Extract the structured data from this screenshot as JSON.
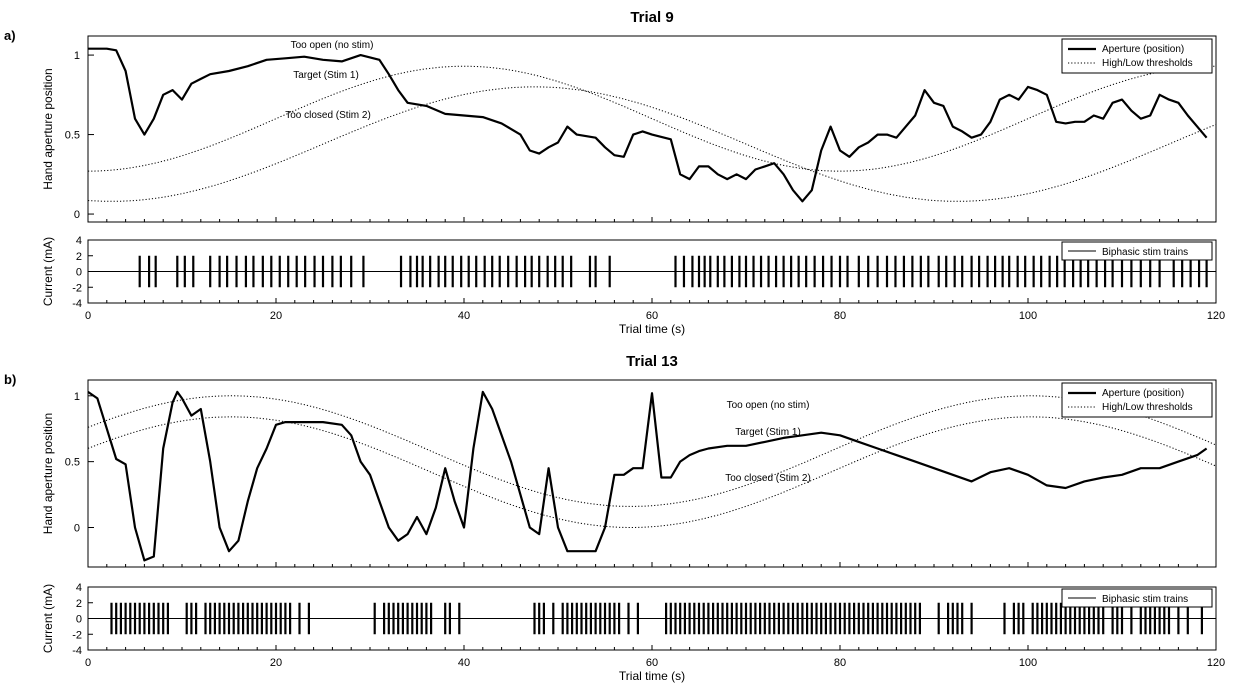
{
  "figure": {
    "panels": [
      {
        "letter": "a)",
        "title": "Trial 9",
        "main_ylabel": "Hand aperture position",
        "stim_ylabel": "Current (mA)",
        "xlabel": "Trial time (s)",
        "annotations": {
          "too_open": "Too open (no stim)",
          "target": "Target (Stim 1)",
          "too_closed": "Too closed (Stim 2)"
        },
        "legend": {
          "aperture": "Aperture (position)",
          "thresholds": "High/Low thresholds",
          "stim": "Biphasic stim trains"
        }
      },
      {
        "letter": "b)",
        "title": "Trial 13",
        "main_ylabel": "Hand aperture position",
        "stim_ylabel": "Current (mA)",
        "xlabel": "Trial time (s)",
        "annotations": {
          "too_open": "Too open (no stim)",
          "target": "Target (Stim 1)",
          "too_closed": "Too closed (Stim 2)"
        },
        "legend": {
          "aperture": "Aperture (position)",
          "thresholds": "High/Low thresholds",
          "stim": "Biphasic stim trains"
        }
      }
    ]
  },
  "chart_data": [
    {
      "type": "line",
      "title": "Trial 9",
      "xlabel": "Trial time (s)",
      "ylabel": "Hand aperture position",
      "xlim": [
        0,
        120
      ],
      "ylim": [
        -0.05,
        1.12
      ],
      "x_ticks": [
        0,
        20,
        40,
        60,
        80,
        100,
        120
      ],
      "y_ticks": [
        0,
        0.5,
        1
      ],
      "legend_position": "top-right",
      "series": [
        {
          "name": "Aperture (position)",
          "style": "solid",
          "x": [
            0,
            2,
            3,
            4,
            5,
            6,
            7,
            8,
            9,
            10,
            11,
            12,
            13,
            15,
            17,
            19,
            21,
            23,
            25,
            27,
            29,
            31,
            32,
            33,
            34,
            36,
            38,
            40,
            42,
            44,
            46,
            47,
            48,
            49,
            50,
            51,
            52,
            54,
            55,
            56,
            57,
            58,
            59,
            60,
            62,
            63,
            64,
            65,
            66,
            67,
            68,
            69,
            70,
            71,
            72,
            73,
            74,
            75,
            76,
            77,
            78,
            79,
            80,
            81,
            82,
            83,
            84,
            85,
            86,
            87,
            88,
            89,
            90,
            91,
            92,
            93,
            94,
            95,
            96,
            97,
            98,
            99,
            100,
            101,
            102,
            103,
            104,
            105,
            106,
            107,
            108,
            109,
            110,
            111,
            112,
            113,
            114,
            115,
            116,
            117,
            118,
            119
          ],
          "y": [
            1.04,
            1.04,
            1.03,
            0.9,
            0.6,
            0.5,
            0.6,
            0.75,
            0.78,
            0.72,
            0.82,
            0.85,
            0.88,
            0.9,
            0.93,
            0.97,
            0.98,
            0.99,
            0.97,
            0.96,
            1.0,
            0.97,
            0.88,
            0.78,
            0.7,
            0.68,
            0.63,
            0.62,
            0.61,
            0.57,
            0.5,
            0.4,
            0.38,
            0.42,
            0.45,
            0.55,
            0.5,
            0.48,
            0.42,
            0.37,
            0.36,
            0.5,
            0.52,
            0.5,
            0.47,
            0.25,
            0.22,
            0.3,
            0.3,
            0.25,
            0.22,
            0.25,
            0.22,
            0.28,
            0.3,
            0.32,
            0.25,
            0.15,
            0.08,
            0.15,
            0.4,
            0.55,
            0.4,
            0.36,
            0.42,
            0.45,
            0.5,
            0.5,
            0.48,
            0.55,
            0.62,
            0.78,
            0.7,
            0.68,
            0.55,
            0.52,
            0.48,
            0.5,
            0.58,
            0.72,
            0.75,
            0.72,
            0.8,
            0.78,
            0.75,
            0.58,
            0.57,
            0.58,
            0.58,
            0.62,
            0.6,
            0.7,
            0.72,
            0.65,
            0.6,
            0.62,
            0.75,
            0.72,
            0.7,
            0.62,
            0.55,
            0.48
          ]
        },
        {
          "name": "High/Low thresholds",
          "style": "dotted",
          "curves": [
            {
              "offset": 0.6,
              "amplitude": 0.33,
              "period": 80,
              "phase_shift": 20
            },
            {
              "offset": 0.44,
              "amplitude": 0.36,
              "period": 90,
              "phase_shift": 25
            }
          ]
        }
      ],
      "annotations": [
        "Too open (no stim)",
        "Target (Stim 1)",
        "Too closed (Stim 2)"
      ]
    },
    {
      "type": "bar",
      "subtype": "stim-raster",
      "xlabel": "Trial time (s)",
      "ylabel": "Current (mA)",
      "xlim": [
        0,
        120
      ],
      "ylim": [
        -4,
        4
      ],
      "y_ticks": [
        -4,
        -2,
        0,
        2,
        4
      ],
      "legend": "Biphasic stim trains",
      "amplitude_mA": 2,
      "pulse_times": [
        5.5,
        6.5,
        7.2,
        9.5,
        10.3,
        11.2,
        13,
        14,
        14.8,
        15.8,
        16.8,
        17.6,
        18.6,
        19.5,
        20.4,
        21.3,
        22.2,
        23.1,
        24.1,
        25,
        26,
        26.9,
        28,
        29.3,
        33.3,
        34.3,
        35,
        35.6,
        36.4,
        37.3,
        38,
        38.8,
        39.7,
        40.5,
        41.3,
        42.2,
        43,
        43.8,
        44.7,
        45.6,
        46.5,
        47.2,
        48,
        48.9,
        49.7,
        50.5,
        51.4,
        53.4,
        54,
        55.5,
        62.5,
        63.4,
        64.3,
        65,
        65.6,
        66.2,
        67,
        67.7,
        68.5,
        69.3,
        70,
        70.8,
        71.6,
        72.4,
        73.2,
        74,
        74.8,
        75.6,
        76.4,
        77.3,
        78.2,
        79.1,
        80,
        80.8,
        82,
        83,
        84,
        85,
        85.9,
        86.8,
        87.7,
        88.6,
        89.4,
        90.5,
        91.3,
        92.2,
        93,
        94,
        94.8,
        95.7,
        96.5,
        97.3,
        98,
        98.9,
        99.7,
        100.6,
        101.4,
        102.3,
        103.1,
        103.9,
        104.8,
        105.6,
        106.4,
        107.3,
        108.2,
        109,
        110,
        111,
        112,
        113,
        114,
        115.5,
        116.4,
        117.3,
        118.2,
        119
      ]
    },
    {
      "type": "line",
      "title": "Trial 13",
      "xlabel": "Trial time (s)",
      "ylabel": "Hand aperture position",
      "xlim": [
        0,
        120
      ],
      "ylim": [
        -0.3,
        1.12
      ],
      "x_ticks": [
        0,
        20,
        40,
        60,
        80,
        100,
        120
      ],
      "y_ticks": [
        0,
        0.5,
        1
      ],
      "legend_position": "top-right",
      "series": [
        {
          "name": "Aperture (position)",
          "style": "solid",
          "x": [
            0,
            1,
            2,
            3,
            4,
            5,
            6,
            7,
            8,
            9,
            9.5,
            10,
            11,
            12,
            13,
            14,
            15,
            16,
            17,
            18,
            19,
            20,
            21,
            22,
            25,
            27,
            28,
            29,
            30,
            31,
            32,
            33,
            34,
            35,
            36,
            37,
            38,
            39,
            40,
            41,
            42,
            43,
            44,
            45,
            46,
            47,
            48,
            49,
            50,
            51,
            52,
            53,
            54,
            55,
            56,
            57,
            58,
            59,
            60,
            61,
            62,
            63,
            64,
            65,
            66,
            68,
            70,
            72,
            74,
            76,
            78,
            80,
            82,
            84,
            86,
            88,
            90,
            92,
            94,
            96,
            98,
            100,
            102,
            104,
            106,
            108,
            110,
            112,
            114,
            116,
            118,
            119
          ],
          "y": [
            1.03,
            0.98,
            0.75,
            0.52,
            0.48,
            0.0,
            -0.25,
            -0.22,
            0.6,
            0.95,
            1.03,
            0.98,
            0.85,
            0.9,
            0.5,
            0.0,
            -0.18,
            -0.1,
            0.2,
            0.45,
            0.6,
            0.78,
            0.8,
            0.8,
            0.8,
            0.78,
            0.7,
            0.5,
            0.4,
            0.2,
            0.0,
            -0.1,
            -0.05,
            0.08,
            -0.05,
            0.15,
            0.45,
            0.2,
            0.0,
            0.6,
            1.03,
            0.9,
            0.7,
            0.5,
            0.25,
            0.0,
            -0.05,
            0.45,
            0.0,
            -0.18,
            -0.18,
            -0.18,
            -0.18,
            0.0,
            0.4,
            0.4,
            0.45,
            0.45,
            1.02,
            0.38,
            0.38,
            0.5,
            0.55,
            0.58,
            0.6,
            0.62,
            0.62,
            0.65,
            0.68,
            0.7,
            0.72,
            0.7,
            0.65,
            0.6,
            0.55,
            0.5,
            0.45,
            0.4,
            0.35,
            0.42,
            0.45,
            0.4,
            0.32,
            0.3,
            0.35,
            0.38,
            0.4,
            0.45,
            0.45,
            0.5,
            0.55,
            0.6
          ]
        },
        {
          "name": "High/Low thresholds",
          "style": "dotted",
          "curves": [
            {
              "offset": 0.58,
              "amplitude": 0.42,
              "period": 85,
              "phase_shift": -6
            },
            {
              "offset": 0.42,
              "amplitude": 0.42,
              "period": 85,
              "phase_shift": -6
            }
          ]
        }
      ],
      "annotations": [
        "Too open (no stim)",
        "Target (Stim 1)",
        "Too closed (Stim 2)"
      ]
    },
    {
      "type": "bar",
      "subtype": "stim-raster",
      "xlabel": "Trial time (s)",
      "ylabel": "Current (mA)",
      "xlim": [
        0,
        120
      ],
      "ylim": [
        -4,
        4
      ],
      "y_ticks": [
        -4,
        -2,
        0,
        2,
        4
      ],
      "legend": "Biphasic stim trains",
      "amplitude_mA": 2,
      "pulse_times": [
        2.5,
        3,
        3.5,
        4,
        4.5,
        5,
        5.5,
        6,
        6.5,
        7,
        7.5,
        8,
        8.5,
        10.5,
        11,
        11.5,
        12.5,
        13,
        13.5,
        14,
        14.5,
        15,
        15.5,
        16,
        16.5,
        17,
        17.5,
        18,
        18.5,
        19,
        19.5,
        20,
        20.5,
        21,
        21.5,
        22.5,
        23.5,
        30.5,
        31.5,
        32,
        32.5,
        33,
        33.5,
        34,
        34.5,
        35,
        35.5,
        36,
        36.5,
        38,
        38.5,
        39.5,
        47.5,
        48,
        48.5,
        49.5,
        50.5,
        51,
        51.5,
        52,
        52.5,
        53,
        53.5,
        54,
        54.5,
        55,
        55.5,
        56,
        56.5,
        57.5,
        58.5,
        61.5,
        62,
        62.5,
        63,
        63.5,
        64,
        64.5,
        65,
        65.5,
        66,
        66.5,
        67,
        67.5,
        68,
        68.5,
        69,
        69.5,
        70,
        70.5,
        71,
        71.5,
        72,
        72.5,
        73,
        73.5,
        74,
        74.5,
        75,
        75.5,
        76,
        76.5,
        77,
        77.5,
        78,
        78.5,
        79,
        79.5,
        80,
        80.5,
        81,
        81.5,
        82,
        82.5,
        83,
        83.5,
        84,
        84.5,
        85,
        85.5,
        86,
        86.5,
        87,
        87.5,
        88,
        88.5,
        90.5,
        91.5,
        92,
        92.5,
        93,
        94,
        97.5,
        98.5,
        99,
        99.5,
        100.5,
        101,
        101.5,
        102,
        102.5,
        103,
        103.5,
        104,
        104.5,
        105,
        105.5,
        106,
        106.5,
        107,
        107.5,
        108,
        109,
        109.5,
        110,
        111,
        112,
        112.5,
        113,
        113.5,
        114,
        114.5,
        115,
        116,
        117,
        118.5
      ]
    }
  ]
}
